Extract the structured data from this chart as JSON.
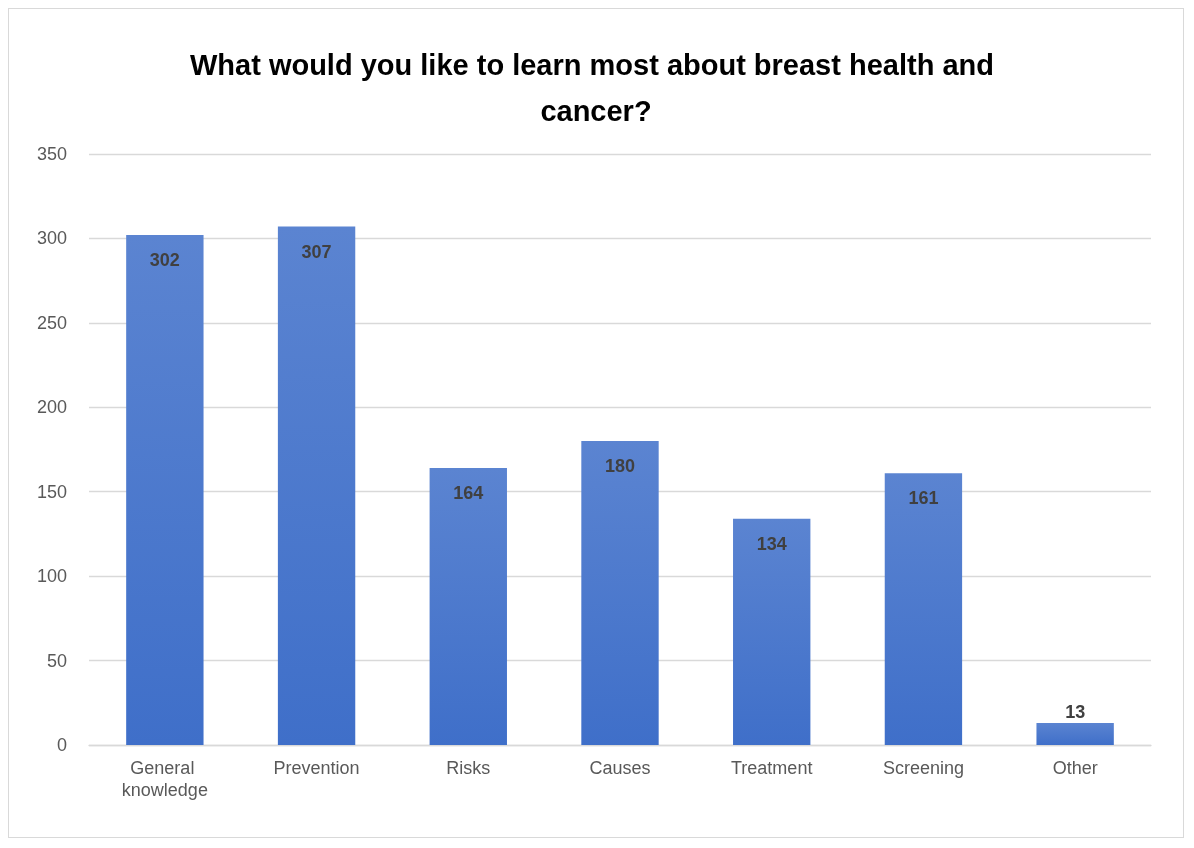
{
  "chart_data": {
    "type": "bar",
    "title": "What would you like to learn most about breast health and cancer?",
    "categories": [
      "General knowledge",
      "Prevention",
      "Risks",
      "Causes",
      "Treatment",
      "Screening",
      "Other"
    ],
    "values": [
      302,
      307,
      164,
      180,
      134,
      161,
      13
    ],
    "color": "#3f6fc9",
    "ylim": [
      0,
      350
    ],
    "yticks": [
      0,
      50,
      100,
      150,
      200,
      250,
      300,
      350
    ],
    "grid": "y",
    "data_labels": true
  }
}
